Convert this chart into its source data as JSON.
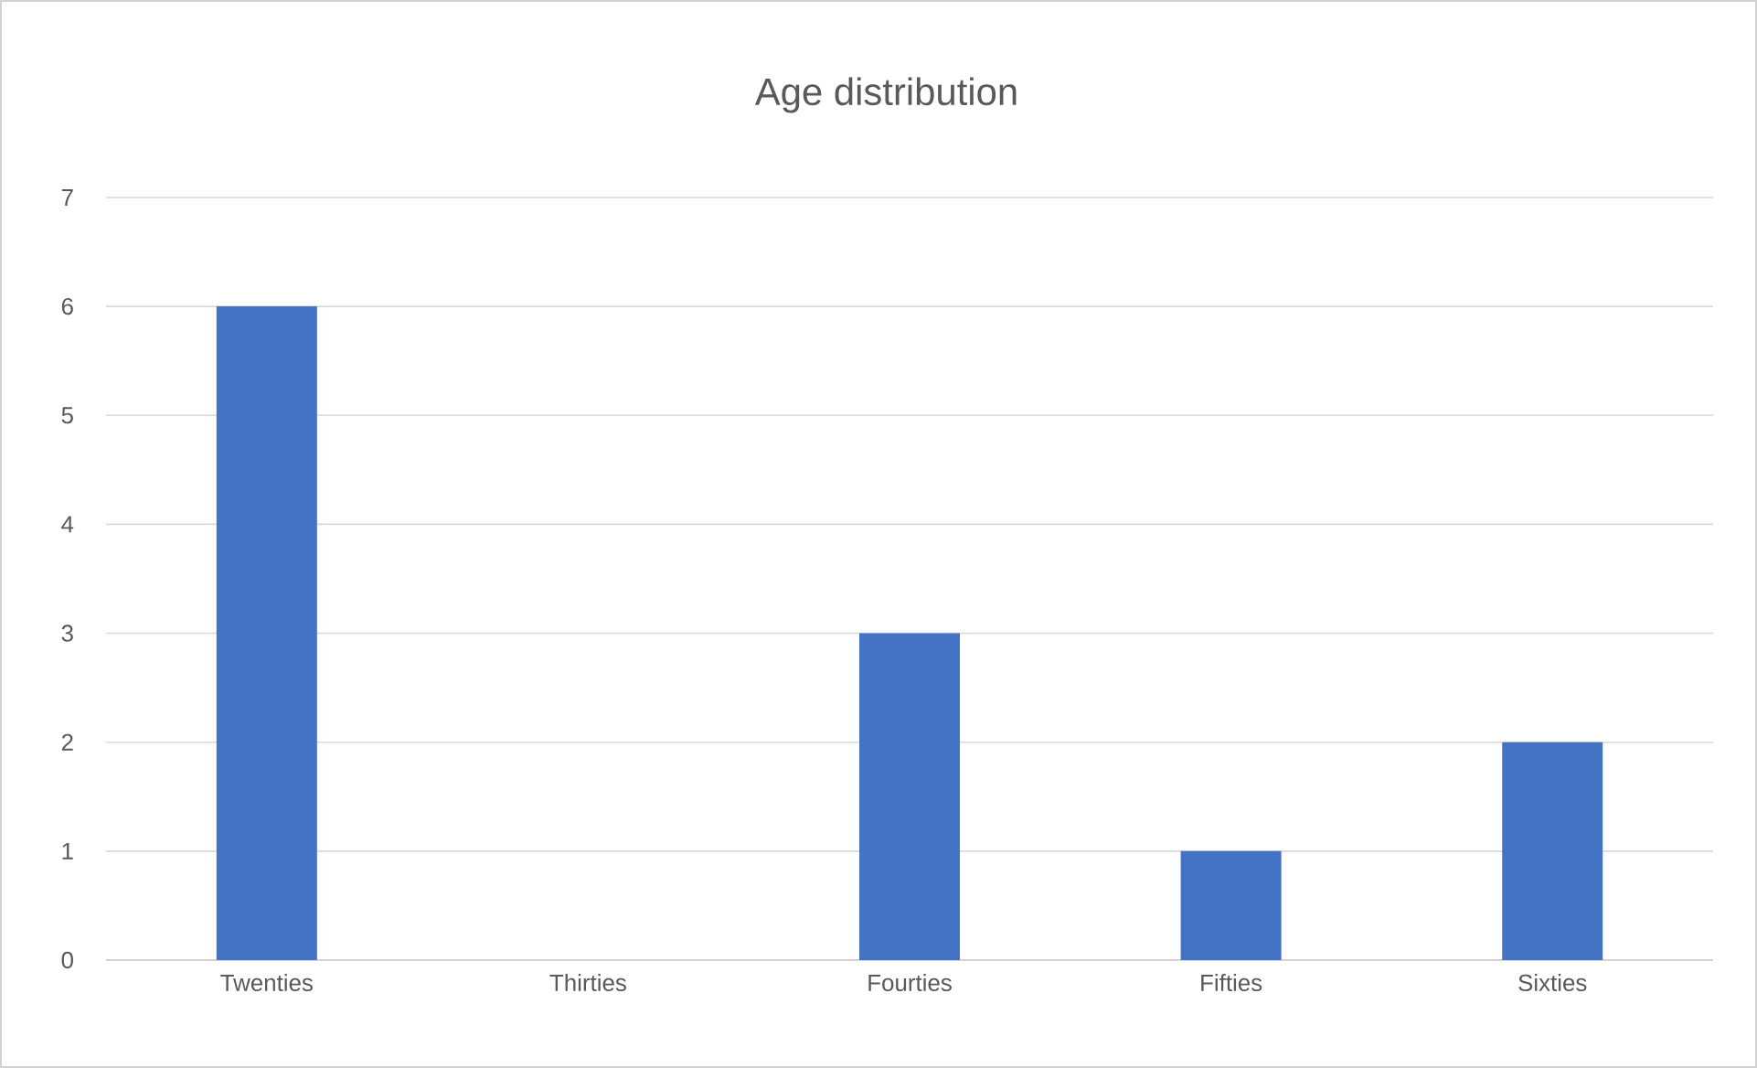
{
  "chart_data": {
    "type": "bar",
    "title": "Age distribution",
    "categories": [
      "Twenties",
      "Thirties",
      "Fourties",
      "Fifties",
      "Sixties"
    ],
    "values": [
      6,
      0,
      3,
      1,
      2
    ],
    "color": "#4472c4",
    "ylim": [
      0,
      7
    ],
    "yticks": [
      0,
      1,
      2,
      3,
      4,
      5,
      6,
      7
    ],
    "grid": "y"
  }
}
